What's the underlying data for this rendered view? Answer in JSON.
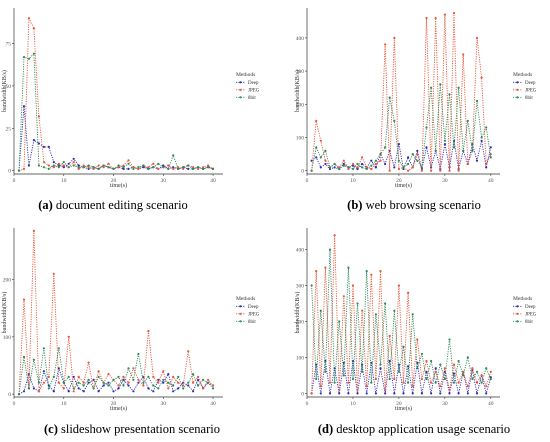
{
  "legend": {
    "title": "Methods",
    "items": [
      {
        "name": "Deep",
        "color": "#2d2db4"
      },
      {
        "name": "JPEG",
        "color": "#e8553a"
      },
      {
        "name": "8bit",
        "color": "#2e8b57"
      }
    ]
  },
  "chart_data": [
    {
      "type": "line",
      "panel_letter": "(a)",
      "panel_caption": "document editing scenario",
      "xlabel": "time(s)",
      "ylabel": "bandwidth(KB/s)",
      "xlim": [
        0,
        42
      ],
      "ylim": [
        -2,
        96
      ],
      "xticks": [
        0,
        10,
        20,
        30,
        40
      ],
      "yticks": [
        0,
        25,
        50,
        75
      ],
      "series": [
        {
          "name": "Deep",
          "x": [
            1,
            2,
            3,
            4,
            5,
            6,
            7,
            8,
            9,
            10,
            11,
            12,
            13,
            14,
            15,
            16,
            17,
            18,
            19,
            20,
            21,
            22,
            23,
            24,
            25,
            26,
            27,
            28,
            29,
            30,
            31,
            32,
            33,
            34,
            35,
            36,
            37,
            38,
            39,
            40
          ],
          "values": [
            0,
            38,
            3,
            18,
            16,
            14,
            14,
            5,
            3,
            2,
            4,
            7,
            3,
            2,
            1,
            2,
            1,
            3,
            2,
            1,
            2,
            1,
            1,
            2,
            1,
            2,
            1,
            2,
            1,
            3,
            1,
            2,
            1,
            2,
            1,
            1,
            2,
            1,
            2,
            1
          ]
        },
        {
          "name": "JPEG",
          "x": [
            1,
            2,
            3,
            4,
            5,
            6,
            7,
            8,
            9,
            10,
            11,
            12,
            13,
            14,
            15,
            16,
            17,
            18,
            19,
            20,
            21,
            22,
            23,
            24,
            25,
            26,
            27,
            28,
            29,
            30,
            31,
            32,
            33,
            34,
            35,
            36,
            37,
            38,
            39,
            40
          ],
          "values": [
            0,
            1,
            90,
            84,
            32,
            5,
            3,
            2,
            4,
            3,
            2,
            5,
            1,
            3,
            2,
            1,
            3,
            2,
            4,
            1,
            2,
            3,
            6,
            2,
            1,
            3,
            2,
            4,
            1,
            2,
            3,
            1,
            2,
            1,
            3,
            2,
            1,
            2,
            3,
            1
          ]
        },
        {
          "name": "8bit",
          "x": [
            1,
            2,
            3,
            4,
            5,
            6,
            7,
            8,
            9,
            10,
            11,
            12,
            13,
            14,
            15,
            16,
            17,
            18,
            19,
            20,
            21,
            22,
            23,
            24,
            25,
            26,
            27,
            28,
            29,
            30,
            31,
            32,
            33,
            34,
            35,
            36,
            37,
            38,
            39,
            40
          ],
          "values": [
            0,
            67,
            66,
            69,
            3,
            2,
            1,
            3,
            2,
            5,
            2,
            3,
            2,
            2,
            3,
            2,
            1,
            3,
            2,
            1,
            3,
            2,
            4,
            1,
            2,
            3,
            1,
            2,
            4,
            2,
            1,
            9,
            1,
            2,
            3,
            1,
            2,
            1,
            2,
            1
          ]
        }
      ]
    },
    {
      "type": "line",
      "panel_letter": "(b)",
      "panel_caption": "web browsing scenario",
      "xlabel": "time(s)",
      "ylabel": "bandwidth(KB/s)",
      "xlim": [
        0,
        42
      ],
      "ylim": [
        -10,
        490
      ],
      "xticks": [
        0,
        10,
        20,
        30,
        40
      ],
      "yticks": [
        0,
        100,
        200,
        300,
        400
      ],
      "series": [
        {
          "name": "Deep",
          "x": [
            1,
            2,
            3,
            4,
            5,
            6,
            7,
            8,
            9,
            10,
            11,
            12,
            13,
            14,
            15,
            16,
            17,
            18,
            19,
            20,
            21,
            22,
            23,
            24,
            25,
            26,
            27,
            28,
            29,
            30,
            31,
            32,
            33,
            34,
            35,
            36,
            37,
            38,
            39,
            40
          ],
          "values": [
            30,
            40,
            10,
            20,
            5,
            10,
            5,
            20,
            10,
            15,
            5,
            20,
            10,
            30,
            10,
            50,
            20,
            60,
            10,
            80,
            5,
            40,
            10,
            60,
            5,
            70,
            10,
            60,
            5,
            80,
            10,
            90,
            5,
            60,
            20,
            80,
            30,
            90,
            10,
            70
          ]
        },
        {
          "name": "JPEG",
          "x": [
            1,
            2,
            3,
            4,
            5,
            6,
            7,
            8,
            9,
            10,
            11,
            12,
            13,
            14,
            15,
            16,
            17,
            18,
            19,
            20,
            21,
            22,
            23,
            24,
            25,
            26,
            27,
            28,
            29,
            30,
            31,
            32,
            33,
            34,
            35,
            36,
            37,
            38,
            39,
            40
          ],
          "values": [
            0,
            150,
            90,
            30,
            10,
            20,
            10,
            30,
            5,
            20,
            10,
            40,
            10,
            5,
            20,
            30,
            380,
            0,
            400,
            5,
            10,
            0,
            10,
            50,
            0,
            460,
            0,
            460,
            0,
            470,
            0,
            475,
            0,
            350,
            20,
            60,
            400,
            280,
            20,
            50
          ]
        },
        {
          "name": "8bit",
          "x": [
            1,
            2,
            3,
            4,
            5,
            6,
            7,
            8,
            9,
            10,
            11,
            12,
            13,
            14,
            15,
            16,
            17,
            18,
            19,
            20,
            21,
            22,
            23,
            24,
            25,
            26,
            27,
            28,
            29,
            30,
            31,
            32,
            33,
            34,
            35,
            36,
            37,
            38,
            39,
            40
          ],
          "values": [
            0,
            70,
            40,
            60,
            10,
            20,
            5,
            15,
            10,
            5,
            20,
            10,
            5,
            15,
            30,
            50,
            70,
            220,
            150,
            30,
            10,
            20,
            50,
            30,
            10,
            130,
            250,
            60,
            260,
            90,
            230,
            70,
            250,
            60,
            150,
            60,
            210,
            100,
            130,
            40
          ]
        }
      ]
    },
    {
      "type": "line",
      "panel_letter": "(c)",
      "panel_caption": "slideshow presentation scenario",
      "xlabel": "time(s)",
      "ylabel": "bandwidth(KB/s)",
      "xlim": [
        0,
        42
      ],
      "ylim": [
        -5,
        290
      ],
      "xticks": [
        0,
        10,
        20,
        30,
        40
      ],
      "yticks": [
        0,
        100,
        200
      ],
      "series": [
        {
          "name": "Deep",
          "x": [
            1,
            2,
            3,
            4,
            5,
            6,
            7,
            8,
            9,
            10,
            11,
            12,
            13,
            14,
            15,
            16,
            17,
            18,
            19,
            20,
            21,
            22,
            23,
            24,
            25,
            26,
            27,
            28,
            29,
            30,
            31,
            32,
            33,
            34,
            35,
            36,
            37,
            38,
            39,
            40
          ],
          "values": [
            0,
            5,
            35,
            10,
            5,
            40,
            15,
            5,
            45,
            20,
            5,
            30,
            10,
            5,
            20,
            25,
            5,
            15,
            20,
            5,
            10,
            25,
            15,
            5,
            20,
            30,
            10,
            5,
            25,
            20,
            35,
            5,
            10,
            20,
            15,
            5,
            25,
            10,
            20,
            15
          ]
        },
        {
          "name": "JPEG",
          "x": [
            1,
            2,
            3,
            4,
            5,
            6,
            7,
            8,
            9,
            10,
            11,
            12,
            13,
            14,
            15,
            16,
            17,
            18,
            19,
            20,
            21,
            22,
            23,
            24,
            25,
            26,
            27,
            28,
            29,
            30,
            31,
            32,
            33,
            34,
            35,
            36,
            37,
            38,
            39,
            40
          ],
          "values": [
            0,
            165,
            10,
            285,
            5,
            20,
            30,
            210,
            20,
            10,
            100,
            5,
            30,
            20,
            55,
            10,
            40,
            20,
            35,
            25,
            15,
            30,
            20,
            45,
            25,
            15,
            110,
            30,
            20,
            40,
            10,
            30,
            20,
            15,
            75,
            20,
            30,
            10,
            25,
            15
          ]
        },
        {
          "name": "8bit",
          "x": [
            1,
            2,
            3,
            4,
            5,
            6,
            7,
            8,
            9,
            10,
            11,
            12,
            13,
            14,
            15,
            16,
            17,
            18,
            19,
            20,
            21,
            22,
            23,
            24,
            25,
            26,
            27,
            28,
            29,
            30,
            31,
            32,
            33,
            34,
            35,
            36,
            37,
            38,
            39,
            40
          ],
          "values": [
            0,
            65,
            10,
            60,
            20,
            80,
            10,
            30,
            80,
            20,
            30,
            10,
            20,
            15,
            25,
            10,
            30,
            20,
            15,
            25,
            30,
            15,
            45,
            25,
            70,
            20,
            30,
            15,
            10,
            25,
            20,
            15,
            30,
            10,
            20,
            35,
            15,
            25,
            20,
            10
          ]
        }
      ]
    },
    {
      "type": "line",
      "panel_letter": "(d)",
      "panel_caption": "desktop application usage scenario",
      "xlabel": "time(s)",
      "ylabel": "bandwidth(KB/s)",
      "xlim": [
        0,
        42
      ],
      "ylim": [
        -10,
        460
      ],
      "xticks": [
        0,
        10,
        20,
        30,
        40
      ],
      "yticks": [
        0,
        100,
        200,
        300,
        400
      ],
      "series": [
        {
          "name": "Deep",
          "x": [
            1,
            2,
            3,
            4,
            5,
            6,
            7,
            8,
            9,
            10,
            11,
            12,
            13,
            14,
            15,
            16,
            17,
            18,
            19,
            20,
            21,
            22,
            23,
            24,
            25,
            26,
            27,
            28,
            29,
            30,
            31,
            32,
            33,
            34,
            35,
            36,
            37,
            38,
            39,
            40
          ],
          "values": [
            0,
            80,
            0,
            90,
            0,
            70,
            0,
            85,
            0,
            90,
            0,
            80,
            0,
            85,
            0,
            70,
            0,
            90,
            0,
            80,
            0,
            75,
            0,
            85,
            0,
            60,
            0,
            70,
            0,
            60,
            0,
            55,
            0,
            60,
            0,
            65,
            0,
            50,
            0,
            45
          ]
        },
        {
          "name": "JPEG",
          "x": [
            1,
            2,
            3,
            4,
            5,
            6,
            7,
            8,
            9,
            10,
            11,
            12,
            13,
            14,
            15,
            16,
            17,
            18,
            19,
            20,
            21,
            22,
            23,
            24,
            25,
            26,
            27,
            28,
            29,
            30,
            31,
            32,
            33,
            34,
            35,
            36,
            37,
            38,
            39,
            40
          ],
          "values": [
            0,
            340,
            20,
            350,
            30,
            440,
            10,
            270,
            30,
            300,
            10,
            230,
            20,
            330,
            40,
            340,
            10,
            160,
            40,
            300,
            30,
            280,
            20,
            150,
            40,
            90,
            30,
            60,
            20,
            70,
            10,
            80,
            30,
            60,
            20,
            70,
            30,
            50,
            20,
            60
          ]
        },
        {
          "name": "8bit",
          "x": [
            1,
            2,
            3,
            4,
            5,
            6,
            7,
            8,
            9,
            10,
            11,
            12,
            13,
            14,
            15,
            16,
            17,
            18,
            19,
            20,
            21,
            22,
            23,
            24,
            25,
            26,
            27,
            28,
            29,
            30,
            31,
            32,
            33,
            34,
            35,
            36,
            37,
            38,
            39,
            40
          ],
          "values": [
            300,
            40,
            230,
            60,
            400,
            30,
            200,
            50,
            350,
            40,
            250,
            60,
            340,
            30,
            220,
            80,
            250,
            40,
            230,
            60,
            130,
            30,
            220,
            70,
            110,
            40,
            90,
            30,
            80,
            40,
            150,
            30,
            90,
            50,
            100,
            40,
            60,
            30,
            70,
            40
          ]
        }
      ]
    }
  ]
}
